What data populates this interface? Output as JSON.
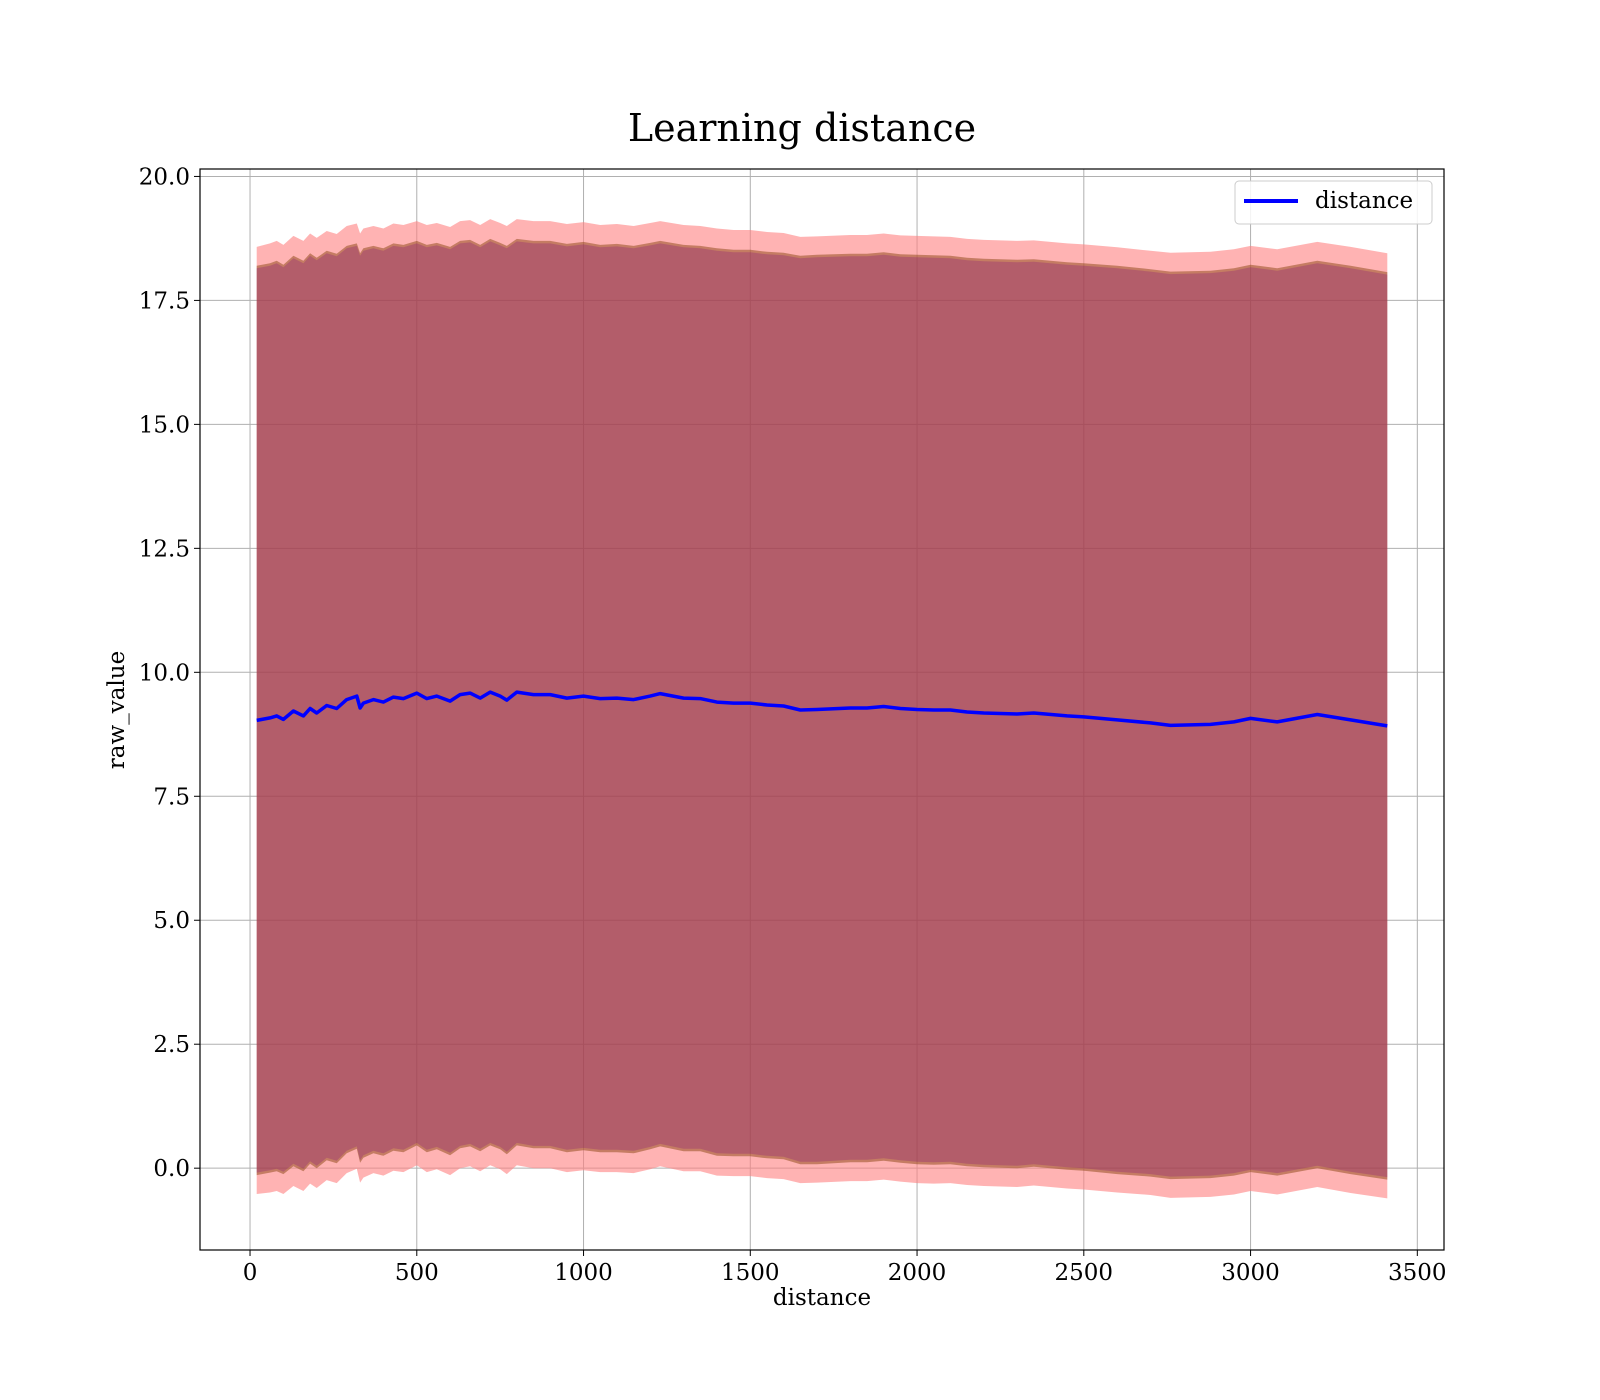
{
  "chart_data": {
    "type": "line",
    "title": "Learning distance",
    "xlabel": "distance",
    "ylabel": "raw_value",
    "xlim": [
      -150,
      3580
    ],
    "ylim": [
      -1.65,
      20.15
    ],
    "xticks": [
      0,
      500,
      1000,
      1500,
      2000,
      2500,
      3000,
      3500
    ],
    "yticks": [
      0.0,
      2.5,
      5.0,
      7.5,
      10.0,
      12.5,
      15.0,
      17.5,
      20.0
    ],
    "ytick_labels": [
      "0.0",
      "2.5",
      "5.0",
      "7.5",
      "10.0",
      "12.5",
      "15.0",
      "17.5",
      "20.0"
    ],
    "grid": true,
    "legend": {
      "position": "top-right",
      "entries": [
        {
          "label": "distance",
          "color": "#0000ff"
        }
      ]
    },
    "colors": {
      "line": "#0000ff",
      "band_outer": "#ff8080",
      "band_inner": "#8b4513",
      "band_mid": "#800080"
    },
    "series": [
      {
        "name": "distance",
        "x": [
          20,
          60,
          80,
          100,
          130,
          160,
          180,
          200,
          230,
          260,
          290,
          320,
          330,
          340,
          370,
          400,
          430,
          460,
          500,
          530,
          560,
          600,
          630,
          660,
          690,
          720,
          750,
          770,
          800,
          850,
          900,
          950,
          1000,
          1050,
          1100,
          1150,
          1200,
          1230,
          1300,
          1350,
          1400,
          1450,
          1500,
          1550,
          1600,
          1650,
          1700,
          1800,
          1850,
          1900,
          1950,
          2000,
          2050,
          2100,
          2150,
          2200,
          2300,
          2350,
          2450,
          2500,
          2600,
          2700,
          2760,
          2880,
          2950,
          3000,
          3080,
          3200,
          3300,
          3410
        ],
        "mean": [
          9.03,
          9.08,
          9.12,
          9.05,
          9.22,
          9.12,
          9.27,
          9.18,
          9.33,
          9.27,
          9.45,
          9.52,
          9.28,
          9.38,
          9.45,
          9.4,
          9.5,
          9.47,
          9.58,
          9.47,
          9.52,
          9.42,
          9.55,
          9.58,
          9.48,
          9.6,
          9.52,
          9.44,
          9.6,
          9.55,
          9.55,
          9.48,
          9.52,
          9.47,
          9.48,
          9.45,
          9.52,
          9.57,
          9.48,
          9.47,
          9.4,
          9.38,
          9.38,
          9.34,
          9.32,
          9.24,
          9.25,
          9.28,
          9.28,
          9.31,
          9.27,
          9.25,
          9.24,
          9.24,
          9.2,
          9.18,
          9.16,
          9.18,
          9.12,
          9.1,
          9.04,
          8.98,
          8.93,
          8.95,
          9.0,
          9.07,
          9.0,
          9.15,
          9.04,
          8.92
        ],
        "band_inner_upper": [
          18.2,
          18.25,
          18.3,
          18.22,
          18.4,
          18.3,
          18.45,
          18.36,
          18.5,
          18.44,
          18.6,
          18.65,
          18.45,
          18.55,
          18.6,
          18.55,
          18.65,
          18.62,
          18.7,
          18.62,
          18.66,
          18.58,
          18.7,
          18.72,
          18.62,
          18.74,
          18.66,
          18.6,
          18.74,
          18.7,
          18.7,
          18.64,
          18.68,
          18.62,
          18.64,
          18.6,
          18.66,
          18.7,
          18.62,
          18.6,
          18.55,
          18.52,
          18.52,
          18.48,
          18.46,
          18.4,
          18.42,
          18.44,
          18.44,
          18.47,
          18.43,
          18.42,
          18.41,
          18.4,
          18.36,
          18.34,
          18.32,
          18.33,
          18.27,
          18.25,
          18.2,
          18.13,
          18.08,
          18.1,
          18.15,
          18.22,
          18.15,
          18.3,
          18.2,
          18.07
        ],
        "band_outer_upper": [
          18.58,
          18.65,
          18.7,
          18.62,
          18.8,
          18.7,
          18.85,
          18.76,
          18.9,
          18.84,
          19.0,
          19.05,
          18.85,
          18.95,
          19.0,
          18.95,
          19.05,
          19.02,
          19.1,
          19.02,
          19.06,
          18.98,
          19.1,
          19.12,
          19.02,
          19.14,
          19.06,
          19.0,
          19.14,
          19.1,
          19.1,
          19.04,
          19.08,
          19.02,
          19.04,
          19.0,
          19.06,
          19.1,
          19.02,
          19.0,
          18.95,
          18.92,
          18.92,
          18.88,
          18.86,
          18.78,
          18.79,
          18.82,
          18.82,
          18.85,
          18.81,
          18.8,
          18.79,
          18.78,
          18.74,
          18.72,
          18.7,
          18.71,
          18.65,
          18.63,
          18.57,
          18.5,
          18.46,
          18.48,
          18.53,
          18.6,
          18.53,
          18.68,
          18.58,
          18.45
        ]
      }
    ]
  }
}
